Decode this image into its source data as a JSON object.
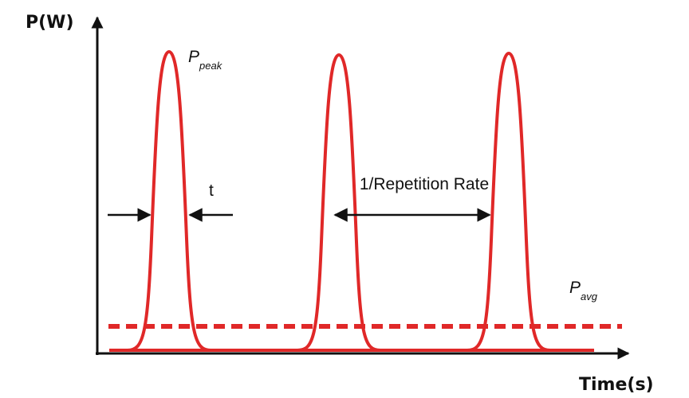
{
  "y_axis_label": "P(W)",
  "x_axis_label": "Time(s)",
  "annotations": {
    "peak": {
      "symbol": "P",
      "subscript": "peak"
    },
    "width": "t",
    "period": "1/Repetition Rate",
    "average": {
      "symbol": "P",
      "subscript": "avg"
    }
  }
}
